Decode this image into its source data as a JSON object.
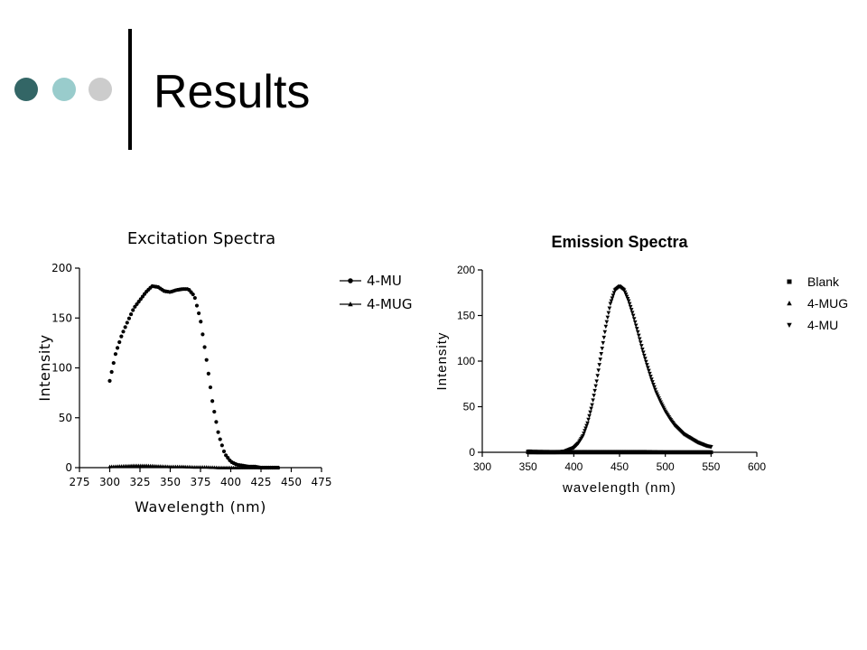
{
  "slide": {
    "title": "Results",
    "accent_colors": [
      "#336666",
      "#99cccc",
      "#cccccc"
    ]
  },
  "chart_data": [
    {
      "type": "scatter",
      "title": "Excitation Spectra",
      "xlabel": "Wavelength (nm)",
      "ylabel": "Intensity",
      "xlim": [
        275,
        475
      ],
      "ylim": [
        0,
        200
      ],
      "xticks": [
        275,
        300,
        325,
        350,
        375,
        400,
        425,
        450,
        475
      ],
      "yticks": [
        0,
        50,
        100,
        150,
        200
      ],
      "legend_position": "top-right",
      "series": [
        {
          "name": "4-MU",
          "marker": "circle",
          "x": [
            300,
            305,
            310,
            315,
            320,
            325,
            330,
            335,
            340,
            345,
            350,
            355,
            360,
            365,
            370,
            375,
            380,
            385,
            390,
            395,
            400,
            405,
            410,
            415,
            420,
            425,
            430,
            435,
            440
          ],
          "y": [
            87,
            115,
            133,
            147,
            160,
            168,
            176,
            182,
            181,
            177,
            176,
            178,
            179,
            179,
            172,
            148,
            108,
            65,
            33,
            14,
            6,
            3,
            2,
            1,
            1,
            0,
            0,
            0,
            0
          ]
        },
        {
          "name": "4-MUG",
          "marker": "triangle-up",
          "x": [
            300,
            310,
            320,
            330,
            340,
            350,
            360,
            370,
            380,
            390,
            400,
            410,
            420,
            430,
            440
          ],
          "y": [
            1,
            1.5,
            2,
            2,
            1.5,
            1,
            1,
            0.5,
            0.5,
            0,
            0,
            0,
            0,
            0,
            0
          ]
        }
      ]
    },
    {
      "type": "scatter",
      "title": "Emission Spectra",
      "xlabel": "wavelength (nm)",
      "ylabel": "Intensity",
      "xlim": [
        300,
        600
      ],
      "ylim": [
        0,
        200
      ],
      "xticks": [
        300,
        350,
        400,
        450,
        500,
        550,
        600
      ],
      "yticks": [
        0,
        50,
        100,
        150,
        200
      ],
      "legend_position": "top-right",
      "series": [
        {
          "name": "Blank",
          "marker": "square",
          "x": [
            350,
            375,
            400,
            425,
            450,
            475,
            500,
            525,
            550
          ],
          "y": [
            0,
            0,
            0,
            0,
            0,
            0,
            0,
            0,
            0
          ]
        },
        {
          "name": "4-MUG",
          "marker": "triangle-up",
          "x": [
            350,
            375,
            400,
            425,
            450,
            475,
            500,
            525,
            550
          ],
          "y": [
            1,
            0.5,
            0.5,
            0.5,
            0.5,
            0.5,
            0,
            0,
            0
          ]
        },
        {
          "name": "4-MU",
          "marker": "triangle-down",
          "x": [
            350,
            360,
            370,
            380,
            390,
            400,
            405,
            410,
            415,
            420,
            425,
            430,
            435,
            440,
            445,
            450,
            455,
            460,
            465,
            470,
            475,
            480,
            485,
            490,
            495,
            500,
            505,
            510,
            515,
            520,
            525,
            530,
            535,
            540,
            545,
            550
          ],
          "y": [
            1,
            0,
            0,
            0,
            1,
            5,
            10,
            18,
            32,
            52,
            78,
            108,
            138,
            163,
            178,
            182,
            178,
            166,
            150,
            132,
            113,
            96,
            80,
            66,
            55,
            45,
            37,
            30,
            25,
            20,
            17,
            14,
            11,
            9,
            7,
            6
          ]
        }
      ]
    }
  ]
}
